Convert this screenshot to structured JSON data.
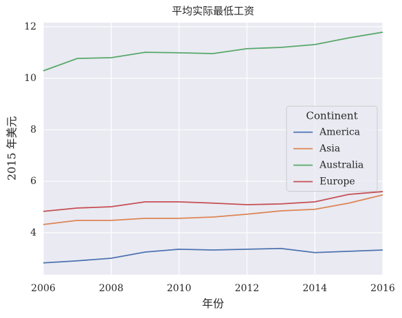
{
  "chart_data": {
    "type": "line",
    "title": "平均实际最低工资",
    "xlabel": "年份",
    "ylabel": "2015 年美元",
    "x": [
      2006,
      2007,
      2008,
      2009,
      2010,
      2011,
      2012,
      2013,
      2014,
      2015,
      2016
    ],
    "series": [
      {
        "name": "America",
        "color": "#4c72b0",
        "values": [
          2.83,
          2.91,
          3.01,
          3.25,
          3.36,
          3.33,
          3.36,
          3.39,
          3.23,
          3.28,
          3.33
        ]
      },
      {
        "name": "Asia",
        "color": "#dd8452",
        "values": [
          4.32,
          4.48,
          4.48,
          4.56,
          4.56,
          4.61,
          4.72,
          4.85,
          4.91,
          5.15,
          5.47
        ]
      },
      {
        "name": "Australia",
        "color": "#55a868",
        "values": [
          10.29,
          10.77,
          10.8,
          11.01,
          10.99,
          10.96,
          11.15,
          11.2,
          11.31,
          11.57,
          11.79
        ]
      },
      {
        "name": "Europe",
        "color": "#c44e52",
        "values": [
          4.83,
          4.96,
          5.01,
          5.2,
          5.2,
          5.15,
          5.09,
          5.12,
          5.2,
          5.49,
          5.6
        ]
      }
    ],
    "legend_title": "Continent",
    "legend": "center right",
    "xlim": [
      2006,
      2016
    ],
    "xticks": [
      2006,
      2008,
      2010,
      2012,
      2014,
      2016
    ],
    "ylim": [
      2.37,
      12.16
    ],
    "yticks": [
      4,
      6,
      8,
      10,
      12
    ],
    "grid": true
  }
}
